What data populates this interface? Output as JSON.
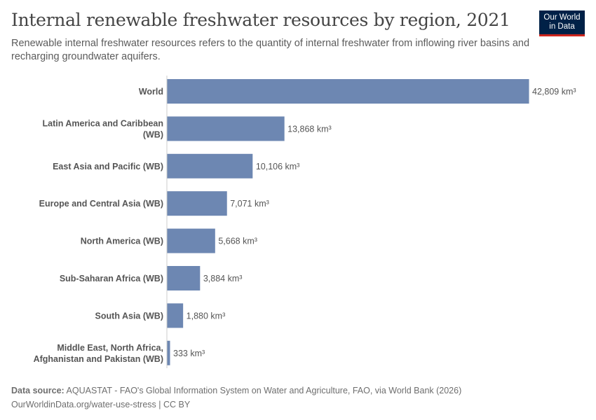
{
  "header": {
    "title": "Internal renewable freshwater resources by region, 2021",
    "subtitle": "Renewable internal freshwater resources refers to the quantity of internal freshwater from inflowing river basins and recharging groundwater aquifers."
  },
  "logo": {
    "line1": "Our World",
    "line2": "in Data"
  },
  "chart_data": {
    "type": "bar",
    "orientation": "horizontal",
    "categories": [
      "World",
      "Latin America and Caribbean (WB)",
      "East Asia and Pacific (WB)",
      "Europe and Central Asia (WB)",
      "North America (WB)",
      "Sub-Saharan Africa (WB)",
      "South Asia (WB)",
      "Middle East, North Africa, Afghanistan and Pakistan (WB)"
    ],
    "values": [
      42809,
      13868,
      10106,
      7071,
      5668,
      3884,
      1880,
      333
    ],
    "value_labels": [
      "42,809 km³",
      "13,868 km³",
      "10,106 km³",
      "7,071 km³",
      "5,668 km³",
      "3,884 km³",
      "1,880 km³",
      "333 km³"
    ],
    "unit": "km³",
    "xlim": [
      0,
      42809
    ],
    "bar_color": "#6d87b2",
    "grid": false
  },
  "footer": {
    "source_label": "Data source:",
    "source_text": "AQUASTAT - FAO's Global Information System on Water and Agriculture, FAO, via World Bank (2026)",
    "url_text": "OurWorldinData.org/water-use-stress | CC BY"
  }
}
